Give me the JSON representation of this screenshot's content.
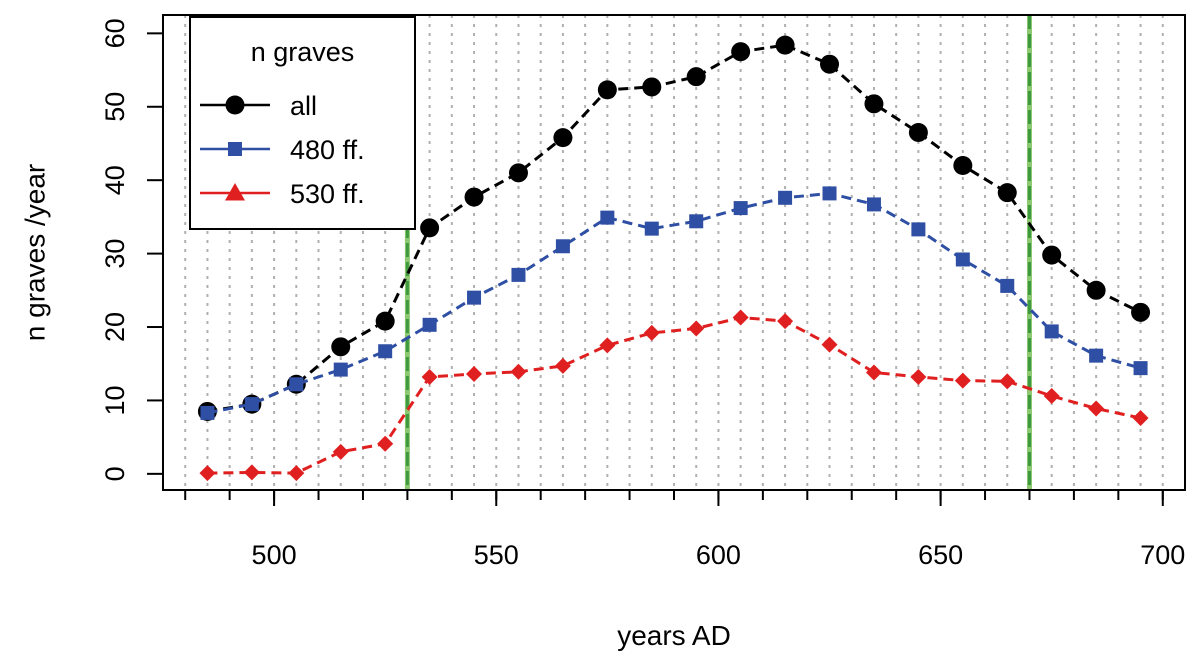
{
  "chart_data": {
    "type": "line",
    "xlabel": "years AD",
    "ylabel": "n graves /year",
    "xlim": [
      475,
      705
    ],
    "ylim": [
      -2.2,
      62.5
    ],
    "x_ticks": [
      500,
      550,
      600,
      650,
      700
    ],
    "y_ticks": [
      0,
      10,
      20,
      30,
      40,
      50,
      60
    ],
    "grid": "vertical dotted every 5 years",
    "reference_lines": [
      530,
      670
    ],
    "legend": {
      "title": "n graves",
      "position": "top-left"
    },
    "x": [
      485,
      495,
      505,
      515,
      525,
      535,
      545,
      555,
      565,
      575,
      585,
      595,
      605,
      615,
      625,
      635,
      645,
      655,
      665,
      675,
      685,
      695
    ],
    "series": [
      {
        "name": "all",
        "color": "#000000",
        "marker": "circle",
        "values": [
          8.5,
          9.5,
          12.2,
          17.3,
          20.8,
          33.5,
          37.7,
          41.0,
          45.8,
          52.3,
          52.7,
          54.1,
          57.5,
          58.4,
          55.8,
          50.4,
          46.5,
          42.0,
          38.3,
          29.8,
          25.0,
          22.0
        ]
      },
      {
        "name": "480 ff.",
        "color": "#2e4fa3",
        "marker": "square",
        "values": [
          8.3,
          9.5,
          12.2,
          14.2,
          16.7,
          20.3,
          24.0,
          27.1,
          31.0,
          34.9,
          33.4,
          34.4,
          36.2,
          37.6,
          38.2,
          36.7,
          33.3,
          29.2,
          25.6,
          19.4,
          16.1,
          14.4
        ]
      },
      {
        "name": "530 ff.",
        "color": "#e02020",
        "marker": "triangle",
        "values": [
          0.1,
          0.2,
          0.1,
          3.0,
          4.1,
          13.2,
          13.6,
          13.9,
          14.7,
          17.5,
          19.2,
          19.8,
          21.3,
          20.8,
          17.6,
          13.8,
          13.2,
          12.7,
          12.6,
          10.6,
          8.9,
          7.6
        ]
      }
    ]
  }
}
